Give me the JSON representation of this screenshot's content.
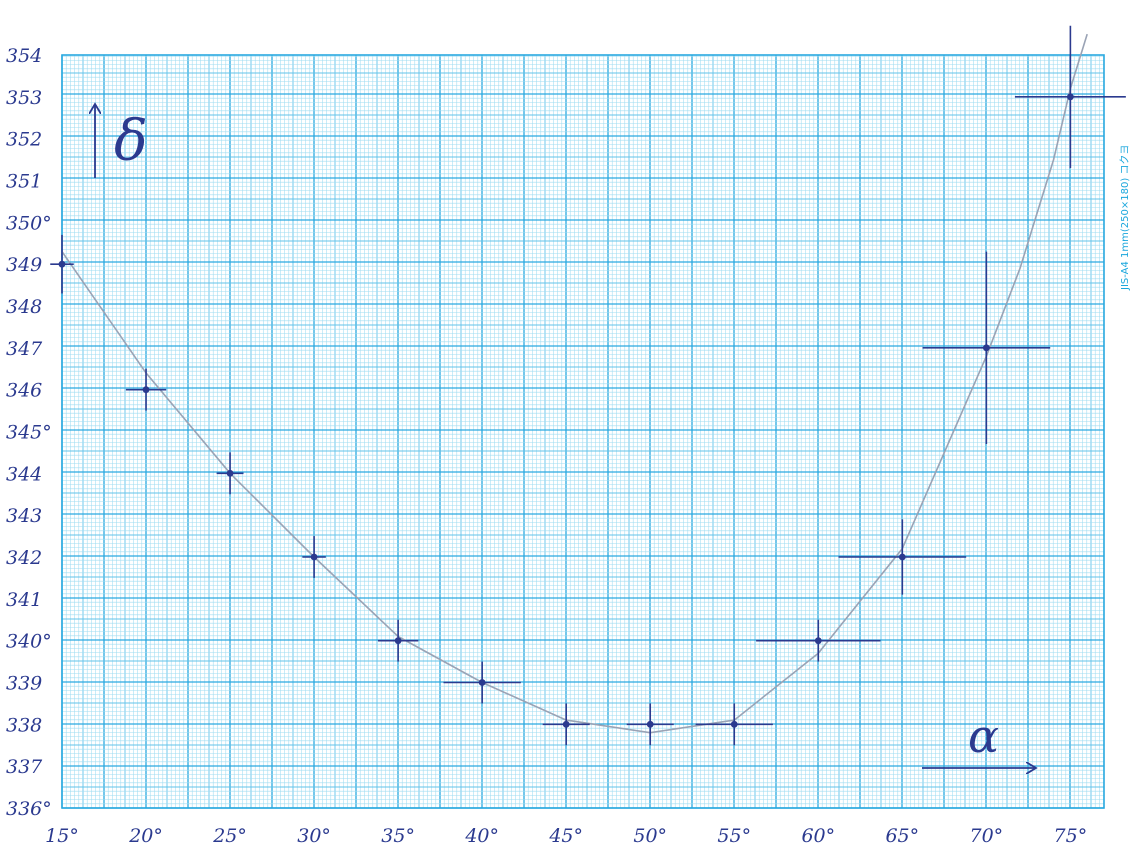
{
  "chart_data": {
    "type": "scatter",
    "title": "",
    "xlabel": "α",
    "ylabel": "δ",
    "xlim": [
      15,
      77
    ],
    "ylim": [
      336,
      354
    ],
    "grid": true,
    "x_ticks": [
      "15°",
      "20°",
      "25°",
      "30°",
      "35°",
      "40°",
      "45°",
      "50°",
      "55°",
      "60°",
      "65°",
      "70°",
      "75°"
    ],
    "y_ticks": [
      "336°",
      "337",
      "338",
      "339",
      "340°",
      "341",
      "342",
      "343",
      "344",
      "345°",
      "346",
      "347",
      "348",
      "349",
      "350°",
      "351",
      "352",
      "353",
      "354"
    ],
    "points": [
      {
        "x": 15,
        "y": 349,
        "ex": 0.7,
        "ey": 0.7
      },
      {
        "x": 20,
        "y": 346,
        "ex": 1.2,
        "ey": 0.5
      },
      {
        "x": 25,
        "y": 344,
        "ex": 0.8,
        "ey": 0.5
      },
      {
        "x": 30,
        "y": 342,
        "ex": 0.7,
        "ey": 0.5
      },
      {
        "x": 35,
        "y": 340,
        "ex": 1.2,
        "ey": 0.5
      },
      {
        "x": 40,
        "y": 339,
        "ex": 2.3,
        "ey": 0.5
      },
      {
        "x": 45,
        "y": 338,
        "ex": 1.4,
        "ey": 0.5
      },
      {
        "x": 50,
        "y": 338,
        "ex": 1.4,
        "ey": 0.5
      },
      {
        "x": 55,
        "y": 338,
        "ex": 2.3,
        "ey": 0.5
      },
      {
        "x": 60,
        "y": 340,
        "ex": 3.7,
        "ey": 0.5
      },
      {
        "x": 65,
        "y": 342,
        "ex": 3.8,
        "ey": 0.9
      },
      {
        "x": 70,
        "y": 347,
        "ex": 3.8,
        "ey": 2.3
      },
      {
        "x": 75,
        "y": 353,
        "ex": 3.3,
        "ey": 1.7
      }
    ],
    "fit_curve": {
      "x": [
        15,
        20,
        25,
        30,
        35,
        40,
        45,
        50,
        55,
        60,
        65,
        70,
        72,
        74,
        75,
        76
      ],
      "y": [
        349.3,
        346.4,
        344.0,
        342.0,
        340.1,
        339.0,
        338.1,
        337.8,
        338.1,
        339.7,
        342.2,
        346.8,
        348.9,
        351.5,
        353.2,
        354.5
      ]
    },
    "paper_side_text": "JIS-A4  1mm(250×180)  コクヨ"
  },
  "colors": {
    "paper": "#ffffff",
    "grid_fine": "#9fdcf2",
    "grid_medium": "#62c3ea",
    "grid_major": "#2aa9e0",
    "ink": "#2b3a8f",
    "pencil": "#9aa3b5"
  }
}
